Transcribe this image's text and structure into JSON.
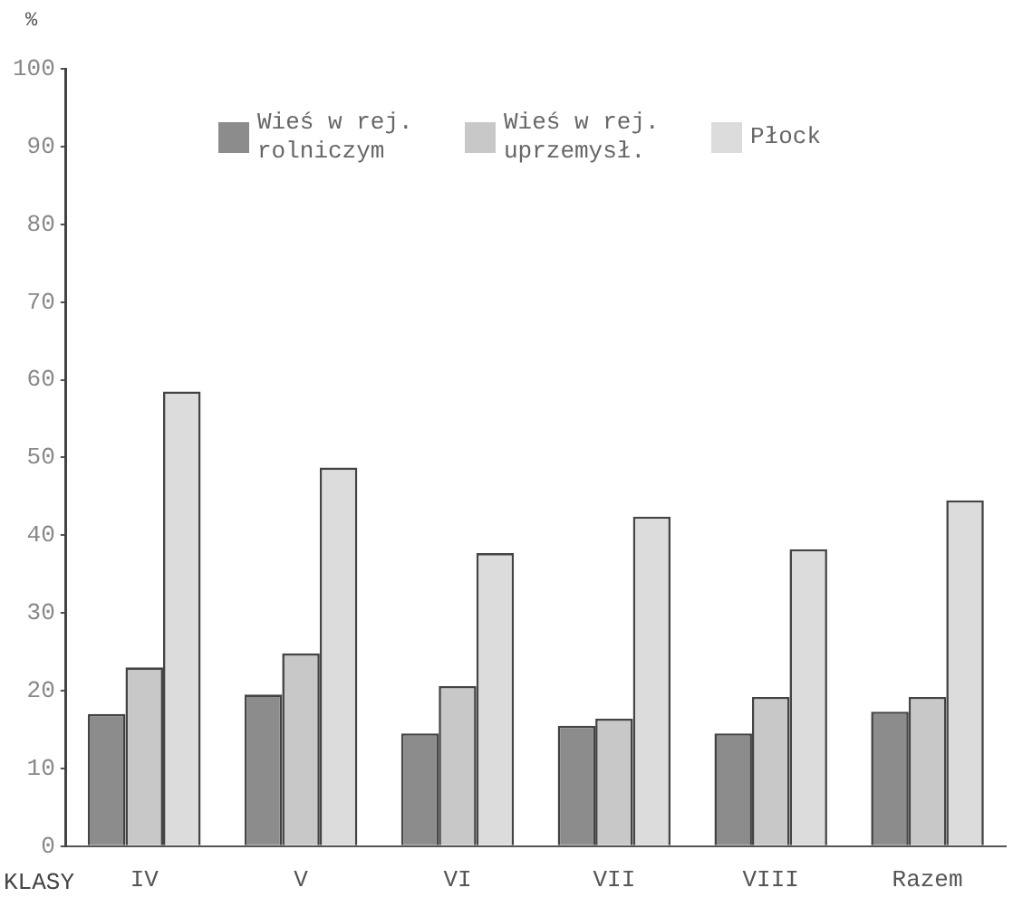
{
  "chart_data": {
    "type": "bar",
    "xlabel": "KLASY",
    "ylabel": "%",
    "categories": [
      "IV",
      "V",
      "VI",
      "VII",
      "VIII",
      "Razem"
    ],
    "series": [
      {
        "name": "Wieś w rej. rolniczym",
        "color": "#8c8c8c",
        "values": [
          17,
          19.5,
          14.5,
          15.5,
          14.5,
          17.3
        ]
      },
      {
        "name": "Wieś w rej. uprzemysł.",
        "color": "#c8c8c8",
        "values": [
          23,
          24.8,
          20.6,
          16.4,
          19.2,
          19.2
        ]
      },
      {
        "name": "Płock",
        "color": "#dcdcdc",
        "values": [
          58.5,
          48.7,
          37.7,
          42.4,
          38.2,
          44.5
        ]
      }
    ],
    "ylim": [
      0,
      100
    ],
    "yticks": [
      0,
      10,
      20,
      30,
      40,
      50,
      60,
      70,
      80,
      90,
      100
    ],
    "grid": false,
    "legend": "top"
  }
}
